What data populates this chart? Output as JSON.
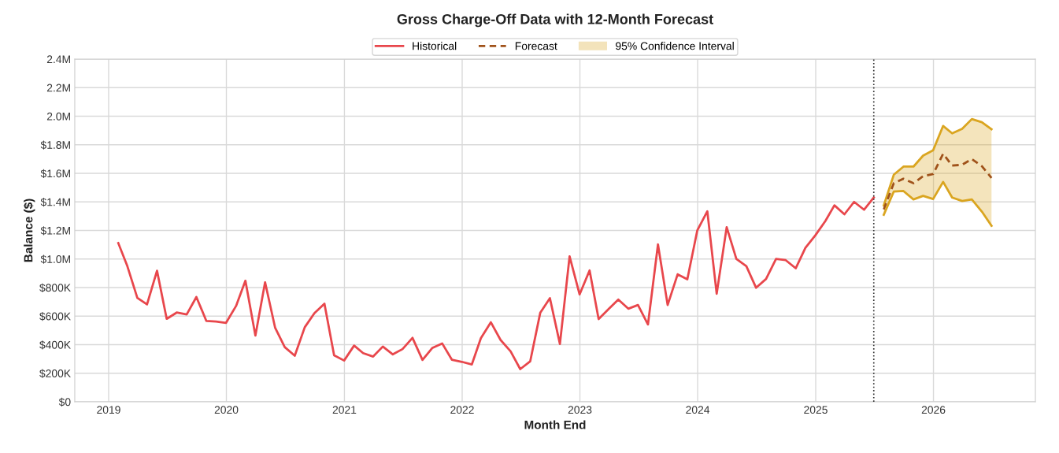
{
  "chart_data": {
    "type": "line",
    "title": "Gross Charge-Off Data with 12-Month Forecast",
    "xlabel": "Month End",
    "ylabel": "Balance ($)",
    "xlim": [
      "2018-09-18",
      "2026-11-13"
    ],
    "xticks": [
      "2019",
      "2020",
      "2021",
      "2022",
      "2023",
      "2024",
      "2025",
      "2026"
    ],
    "ylim": [
      0,
      2400000
    ],
    "yticks": [
      {
        "value": 0,
        "label": "$0"
      },
      {
        "value": 200000,
        "label": "$200K"
      },
      {
        "value": 400000,
        "label": "$400K"
      },
      {
        "value": 600000,
        "label": "$600K"
      },
      {
        "value": 800000,
        "label": "$800K"
      },
      {
        "value": 1000000,
        "label": "$1.0M"
      },
      {
        "value": 1200000,
        "label": "$1.2M"
      },
      {
        "value": 1400000,
        "label": "$1.4M"
      },
      {
        "value": 1600000,
        "label": "$1.6M"
      },
      {
        "value": 1800000,
        "label": "$1.8M"
      },
      {
        "value": 2000000,
        "label": "2.0M"
      },
      {
        "value": 2200000,
        "label": "2.2M"
      },
      {
        "value": 2400000,
        "label": "2.4M"
      }
    ],
    "grid": true,
    "legend": "top",
    "ref_lines": [
      {
        "axis": "x",
        "value": "2025-06-30",
        "color": "#333333",
        "line_style": "dotted"
      }
    ],
    "series": [
      {
        "name": "Historical",
        "type": "line",
        "color": "#e8474c",
        "line_style": "solid",
        "x": [
          "2019-01-31",
          "2019-02-28",
          "2019-03-31",
          "2019-04-30",
          "2019-05-31",
          "2019-06-30",
          "2019-07-31",
          "2019-08-31",
          "2019-09-30",
          "2019-10-31",
          "2019-11-30",
          "2019-12-31",
          "2020-01-31",
          "2020-02-29",
          "2020-03-31",
          "2020-04-30",
          "2020-05-31",
          "2020-06-30",
          "2020-07-31",
          "2020-08-31",
          "2020-09-30",
          "2020-10-31",
          "2020-11-30",
          "2020-12-31",
          "2021-01-31",
          "2021-02-28",
          "2021-03-31",
          "2021-04-30",
          "2021-05-31",
          "2021-06-30",
          "2021-07-31",
          "2021-08-31",
          "2021-09-30",
          "2021-10-31",
          "2021-11-30",
          "2021-12-31",
          "2022-01-31",
          "2022-02-28",
          "2022-03-31",
          "2022-04-30",
          "2022-05-31",
          "2022-06-30",
          "2022-07-31",
          "2022-08-31",
          "2022-09-30",
          "2022-10-31",
          "2022-11-30",
          "2022-12-31",
          "2023-01-31",
          "2023-02-28",
          "2023-03-31",
          "2023-04-30",
          "2023-05-31",
          "2023-06-30",
          "2023-07-31",
          "2023-08-31",
          "2023-09-30",
          "2023-10-31",
          "2023-11-30",
          "2023-12-31",
          "2024-01-31",
          "2024-02-29",
          "2024-03-31",
          "2024-04-30",
          "2024-05-31",
          "2024-06-30",
          "2024-07-31",
          "2024-08-31",
          "2024-09-30",
          "2024-10-31",
          "2024-11-30",
          "2024-12-31",
          "2025-01-31",
          "2025-02-28",
          "2025-03-31",
          "2025-04-30",
          "2025-05-31",
          "2025-06-30"
        ],
        "values": [
          1111000,
          950000,
          728000,
          682000,
          918000,
          581000,
          625000,
          612000,
          734000,
          566000,
          562000,
          553000,
          671000,
          848000,
          464000,
          837000,
          520000,
          383000,
          323000,
          522000,
          621000,
          687000,
          326000,
          289000,
          394000,
          341000,
          317000,
          387000,
          332000,
          369000,
          448000,
          293000,
          376000,
          409000,
          295000,
          280000,
          262000,
          446000,
          557000,
          433000,
          354000,
          229000,
          284000,
          623000,
          726000,
          405000,
          1019000,
          752000,
          920000,
          579000,
          650000,
          716000,
          652000,
          678000,
          542000,
          1102000,
          678000,
          893000,
          858000,
          1201000,
          1334000,
          757000,
          1223000,
          1001000,
          950000,
          799000,
          860000,
          1001000,
          992000,
          935000,
          1078000,
          1166000,
          1266000,
          1376000,
          1313000,
          1400000,
          1345000,
          1431000
        ]
      },
      {
        "name": "Forecast",
        "type": "line",
        "color": "#a0521a",
        "line_style": "dashed",
        "x": [
          "2025-07-31",
          "2025-08-31",
          "2025-09-30",
          "2025-10-31",
          "2025-11-30",
          "2025-12-31",
          "2026-01-31",
          "2026-02-28",
          "2026-03-31",
          "2026-04-30",
          "2026-05-31",
          "2026-06-30"
        ],
        "values": [
          1347000,
          1531000,
          1562000,
          1531000,
          1580000,
          1595000,
          1737000,
          1654000,
          1660000,
          1700000,
          1650000,
          1568000
        ]
      },
      {
        "name": "95% Confidence Interval",
        "type": "area",
        "color": "#daa520",
        "x": [
          "2025-07-31",
          "2025-08-31",
          "2025-09-30",
          "2025-10-31",
          "2025-11-30",
          "2025-12-31",
          "2026-01-31",
          "2026-02-28",
          "2026-03-31",
          "2026-04-30",
          "2026-05-31",
          "2026-06-30"
        ],
        "values": [
          1375000,
          1590000,
          1647000,
          1647000,
          1724000,
          1761000,
          1932000,
          1880000,
          1912000,
          1980000,
          1958000,
          1908000
        ]
      },
      {
        "color": "#daa520",
        "line_style": "solid",
        "x": [
          "2025-07-31",
          "2025-08-31",
          "2025-09-30",
          "2025-10-31",
          "2025-11-30",
          "2025-12-31",
          "2026-01-31",
          "2026-02-28",
          "2026-03-31",
          "2026-04-30",
          "2026-05-31",
          "2026-06-30"
        ],
        "values": [
          1310000,
          1472000,
          1476000,
          1417000,
          1442000,
          1420000,
          1540000,
          1430000,
          1406000,
          1417000,
          1332000,
          1233000
        ]
      }
    ]
  }
}
